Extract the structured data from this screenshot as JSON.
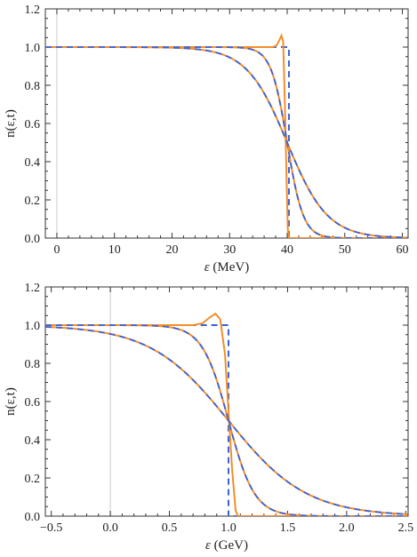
{
  "colors": {
    "solid": "#F28E2B",
    "dashed": "#3A62D6",
    "frame": "#333333",
    "zero_line": "#cccccc"
  },
  "chart_data": [
    {
      "type": "line",
      "title": "",
      "xlabel_italic": "ε",
      "xlabel_unit": " (MeV)",
      "ylabel": "n(ε,t)",
      "xlim": [
        -2,
        61
      ],
      "ylim": [
        0,
        1.2
      ],
      "x_ticks": [
        0,
        10,
        20,
        30,
        40,
        50,
        60
      ],
      "x_tick_labels": [
        "0",
        "10",
        "20",
        "30",
        "40",
        "50",
        "60"
      ],
      "y_ticks": [
        0.0,
        0.2,
        0.4,
        0.6,
        0.8,
        1.0,
        1.2
      ],
      "y_tick_labels": [
        "0.0",
        "0.2",
        "0.4",
        "0.6",
        "0.8",
        "1.0",
        "1.2"
      ],
      "series": [
        {
          "style": "dashed",
          "points": [
            [
              0,
              1
            ],
            [
              40.3,
              1
            ],
            [
              40.3,
              0
            ],
            [
              60,
              0
            ]
          ]
        },
        {
          "style": "solid",
          "points": [
            [
              0,
              1
            ],
            [
              37.5,
              1
            ],
            [
              38.2,
              1.01
            ],
            [
              38.7,
              1.04
            ],
            [
              39.0,
              1.06
            ],
            [
              39.3,
              1.03
            ],
            [
              39.6,
              0.7
            ],
            [
              39.9,
              0.3
            ],
            [
              40.1,
              0.05
            ],
            [
              40.3,
              0
            ],
            [
              60,
              0
            ]
          ]
        },
        {
          "style": "solid_dashed",
          "mu": 40,
          "T": 1.4
        },
        {
          "style": "solid_dashed",
          "mu": 40,
          "T": 3.5
        }
      ]
    },
    {
      "type": "line",
      "title": "",
      "xlabel_italic": "ε",
      "xlabel_unit": " (GeV)",
      "ylabel": "n(ε,t)",
      "xlim": [
        -0.55,
        2.52
      ],
      "ylim": [
        0,
        1.2
      ],
      "x_ticks": [
        -0.5,
        0.0,
        0.5,
        1.0,
        1.5,
        2.0,
        2.5
      ],
      "x_tick_labels": [
        "−0.5",
        "0.0",
        "0.5",
        "1.0",
        "1.5",
        "2.0",
        "2.5"
      ],
      "y_ticks": [
        0.0,
        0.2,
        0.4,
        0.6,
        0.8,
        1.0,
        1.2
      ],
      "y_tick_labels": [
        "0.0",
        "0.2",
        "0.4",
        "0.6",
        "0.8",
        "1.0",
        "1.2"
      ],
      "series": [
        {
          "style": "dashed",
          "points": [
            [
              -0.5,
              1
            ],
            [
              0.82,
              1
            ],
            [
              1.0,
              1
            ],
            [
              1.0,
              0
            ],
            [
              2.5,
              0
            ]
          ]
        },
        {
          "style": "solid",
          "points": [
            [
              -0.5,
              1
            ],
            [
              0.7,
              1
            ],
            [
              0.78,
              1.01
            ],
            [
              0.84,
              1.04
            ],
            [
              0.89,
              1.06
            ],
            [
              0.93,
              1.03
            ],
            [
              0.97,
              0.85
            ],
            [
              1.0,
              0.55
            ],
            [
              1.03,
              0.25
            ],
            [
              1.06,
              0.03
            ],
            [
              1.08,
              0
            ],
            [
              2.5,
              0
            ]
          ]
        },
        {
          "style": "solid_dashed",
          "mu": 1.0,
          "T": 0.11
        },
        {
          "style": "solid_dashed",
          "mu": 1.0,
          "T": 0.33
        }
      ]
    }
  ]
}
